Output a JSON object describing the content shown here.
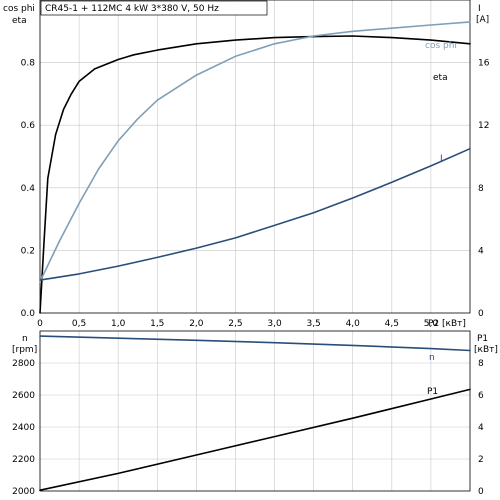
{
  "chart_data": [
    {
      "type": "line",
      "title": "CR45-1 + 112MC   4 kW   3*380 V, 50 Hz",
      "xlabel": "P2 [кВт]",
      "xlim": [
        0,
        5.5
      ],
      "xticks": [
        "0",
        "0,5",
        "1,0",
        "1,5",
        "2,0",
        "2,5",
        "3,0",
        "3,5",
        "4,0",
        "4,5",
        "5,0"
      ],
      "ylabel_left": [
        "cos phi",
        "eta"
      ],
      "ylim_left": [
        0,
        1.0
      ],
      "yticks_left": [
        "0.0",
        "0.2",
        "0.4",
        "0.6",
        "0.8"
      ],
      "ylabel_right": [
        "I",
        "[A]"
      ],
      "ylim_right": [
        0,
        20
      ],
      "yticks_right": [
        "0",
        "4",
        "8",
        "12",
        "16"
      ],
      "grid": true,
      "series": [
        {
          "name": "eta",
          "axis": "left",
          "color": "#000000",
          "x": [
            0.0,
            0.05,
            0.1,
            0.15,
            0.2,
            0.3,
            0.4,
            0.5,
            0.6,
            0.7,
            0.8,
            1.0,
            1.2,
            1.5,
            2.0,
            2.5,
            3.0,
            3.5,
            4.0,
            4.5,
            5.0,
            5.5
          ],
          "y": [
            0.0,
            0.22,
            0.43,
            0.5,
            0.57,
            0.65,
            0.7,
            0.74,
            0.76,
            0.78,
            0.79,
            0.81,
            0.825,
            0.84,
            0.86,
            0.872,
            0.88,
            0.883,
            0.885,
            0.88,
            0.872,
            0.86
          ]
        },
        {
          "name": "cos phi",
          "axis": "left",
          "color": "#7f9fb8",
          "x": [
            0.0,
            0.25,
            0.5,
            0.75,
            1.0,
            1.25,
            1.5,
            2.0,
            2.5,
            3.0,
            3.5,
            4.0,
            4.5,
            5.0,
            5.5
          ],
          "y": [
            0.1,
            0.23,
            0.35,
            0.46,
            0.55,
            0.62,
            0.68,
            0.76,
            0.82,
            0.86,
            0.885,
            0.9,
            0.91,
            0.92,
            0.93
          ]
        },
        {
          "name": "I",
          "axis": "right",
          "color": "#2a4e7a",
          "x": [
            0.0,
            0.5,
            1.0,
            1.5,
            2.0,
            2.5,
            3.0,
            3.5,
            4.0,
            4.5,
            5.0,
            5.5
          ],
          "y": [
            2.1,
            2.5,
            3.0,
            3.55,
            4.15,
            4.8,
            5.6,
            6.4,
            7.35,
            8.35,
            9.4,
            10.5
          ]
        }
      ]
    },
    {
      "type": "line",
      "xlim": [
        0,
        5.5
      ],
      "ylabel_left": [
        "n",
        "[rpm]"
      ],
      "ylim_left": [
        2000,
        3000
      ],
      "yticks_left": [
        "2000",
        "2200",
        "2400",
        "2600",
        "2800"
      ],
      "ylabel_right": [
        "P1",
        "[кВт]"
      ],
      "ylim_right": [
        0,
        10
      ],
      "yticks_right": [
        "0",
        "2",
        "4",
        "6",
        "8"
      ],
      "grid": true,
      "series": [
        {
          "name": "n",
          "axis": "left",
          "color": "#2a4e7a",
          "x": [
            0.0,
            1.0,
            2.0,
            3.0,
            4.0,
            5.0,
            5.5
          ],
          "y": [
            2968,
            2955,
            2942,
            2927,
            2910,
            2890,
            2878
          ]
        },
        {
          "name": "P1",
          "axis": "right",
          "color": "#000000",
          "x": [
            0.0,
            1.0,
            2.0,
            3.0,
            4.0,
            5.0,
            5.5
          ],
          "y": [
            0.05,
            1.1,
            2.25,
            3.4,
            4.55,
            5.75,
            6.35
          ]
        }
      ]
    }
  ]
}
